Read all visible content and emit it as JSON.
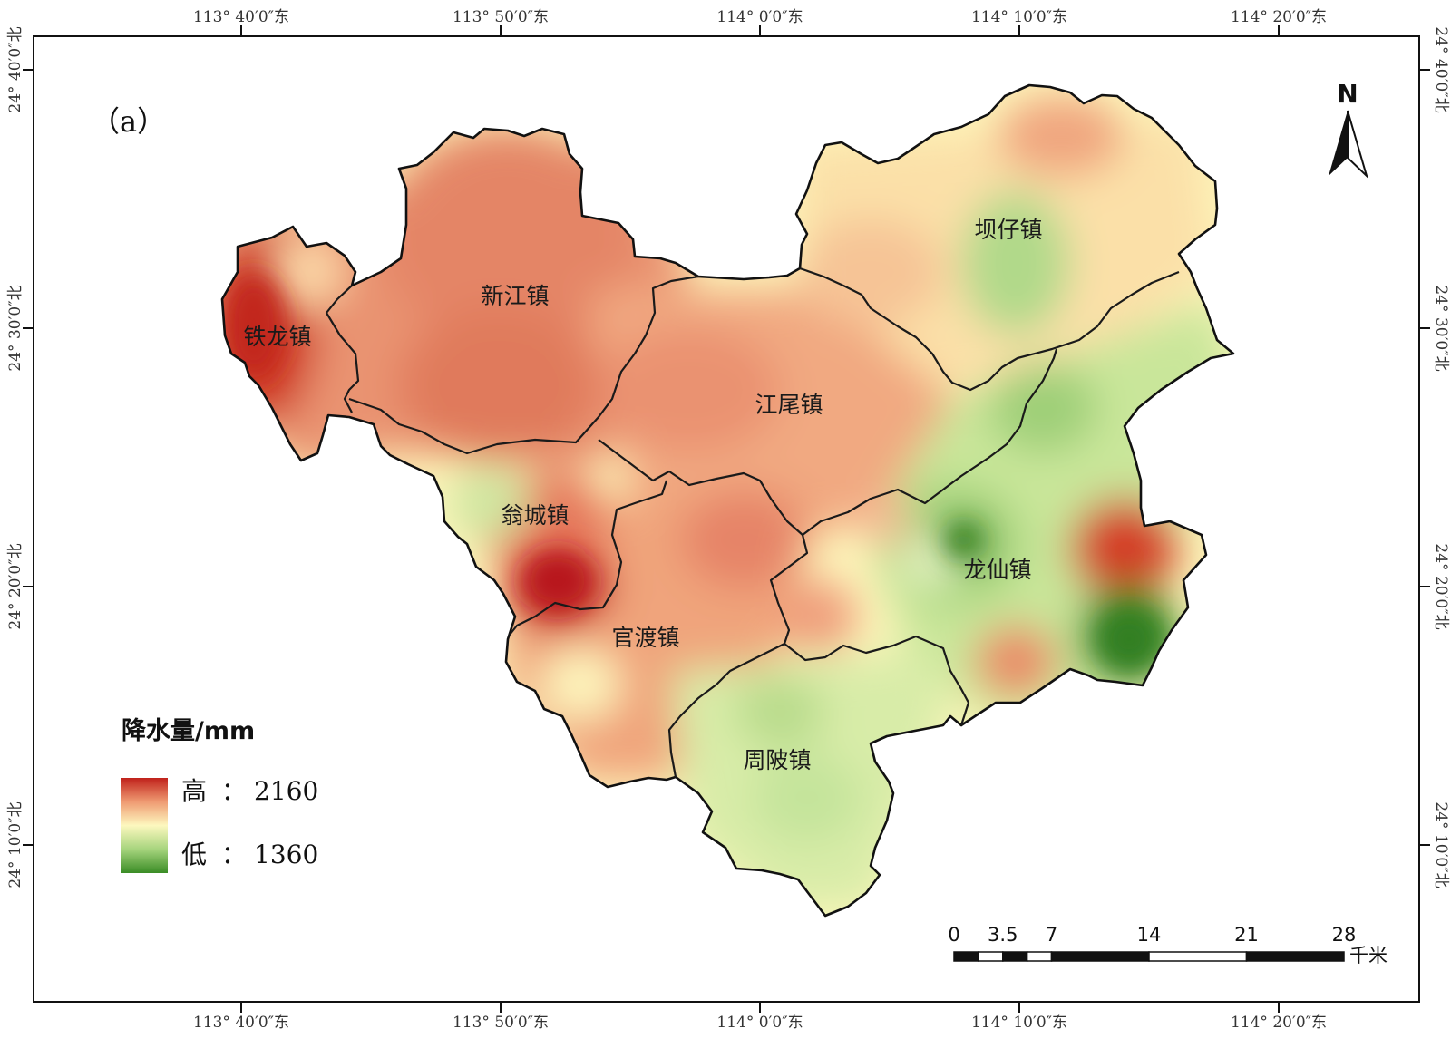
{
  "panel_label": "（a）",
  "graticule": {
    "top": [
      "113° 40′0″东",
      "113° 50′0″东",
      "114° 0′0″东",
      "114° 10′0″东",
      "114° 20′0″东"
    ],
    "bottom": [
      "113° 40′0″东",
      "113° 50′0″东",
      "114° 0′0″东",
      "114° 10′0″东",
      "114° 20′0″东"
    ],
    "left": [
      "24° 40′0″北",
      "24° 30′0″北",
      "24° 20′0″北",
      "24° 10′0″北"
    ],
    "right": [
      "24° 40′0″北",
      "24° 30′0″北",
      "24° 20′0″北",
      "24° 10′0″北"
    ]
  },
  "towns": [
    "铁龙镇",
    "新江镇",
    "坝仔镇",
    "江尾镇",
    "翁城镇",
    "龙仙镇",
    "官渡镇",
    "周陂镇"
  ],
  "legend": {
    "title": "降水量/mm",
    "high_label": "高",
    "high_value": "2160",
    "low_label": "低",
    "low_value": "1360",
    "separator": "：",
    "colors": {
      "high": "#b5191a",
      "mid": "#fdfbbc",
      "low": "#3a8c25"
    }
  },
  "north_arrow": {
    "label": "N"
  },
  "scale_bar": {
    "ticks": [
      "0",
      "3.5",
      "7",
      "14",
      "21",
      "28"
    ],
    "unit": "千米"
  },
  "colors": {
    "very_high": "#c0211b",
    "high": "#e8866a",
    "mid_high": "#f3b98e",
    "neutral": "#fdf7bd",
    "mid_low": "#c9e59a",
    "low": "#3e8f26"
  }
}
